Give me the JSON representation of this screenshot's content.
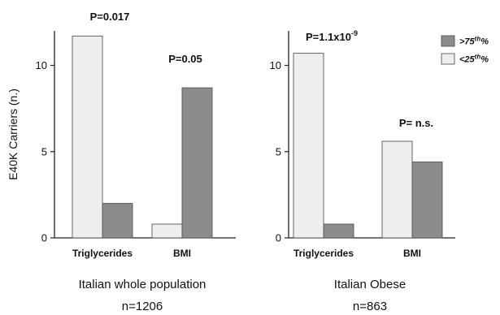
{
  "chart_data": [
    {
      "type": "bar",
      "title": "Italian whole population",
      "subtitle": "n=1206",
      "ylabel": "E40K Carriers (n.)",
      "ylim": [
        0,
        12
      ],
      "yticks": [
        0,
        5,
        10
      ],
      "categories": [
        "Triglycerides",
        "BMI"
      ],
      "series": [
        {
          "name": "<25th%",
          "color": "#eeeeee",
          "values": [
            11.7,
            0.8
          ]
        },
        {
          "name": ">75th%",
          "color": "#8c8c8c",
          "values": [
            2.0,
            8.7
          ]
        }
      ],
      "annotations": [
        "P=0.017",
        "P=0.05"
      ]
    },
    {
      "type": "bar",
      "title": "Italian Obese",
      "subtitle": "n=863",
      "ylabel": "",
      "ylim": [
        0,
        12
      ],
      "yticks": [
        0,
        5,
        10
      ],
      "categories": [
        "Triglycerides",
        "BMI"
      ],
      "series": [
        {
          "name": "<25th%",
          "color": "#eeeeee",
          "values": [
            10.7,
            5.6
          ]
        },
        {
          "name": ">75th%",
          "color": "#8c8c8c",
          "values": [
            0.8,
            4.4
          ]
        }
      ],
      "annotations": [
        {
          "base": "P=1.1x10",
          "exp": "-9"
        },
        "P= n.s."
      ]
    }
  ],
  "legend": {
    "position": "top-right",
    "items": [
      {
        "label": ">75th%",
        "color": "#8c8c8c"
      },
      {
        "label": "<25th%",
        "color": "#eeeeee"
      }
    ]
  }
}
